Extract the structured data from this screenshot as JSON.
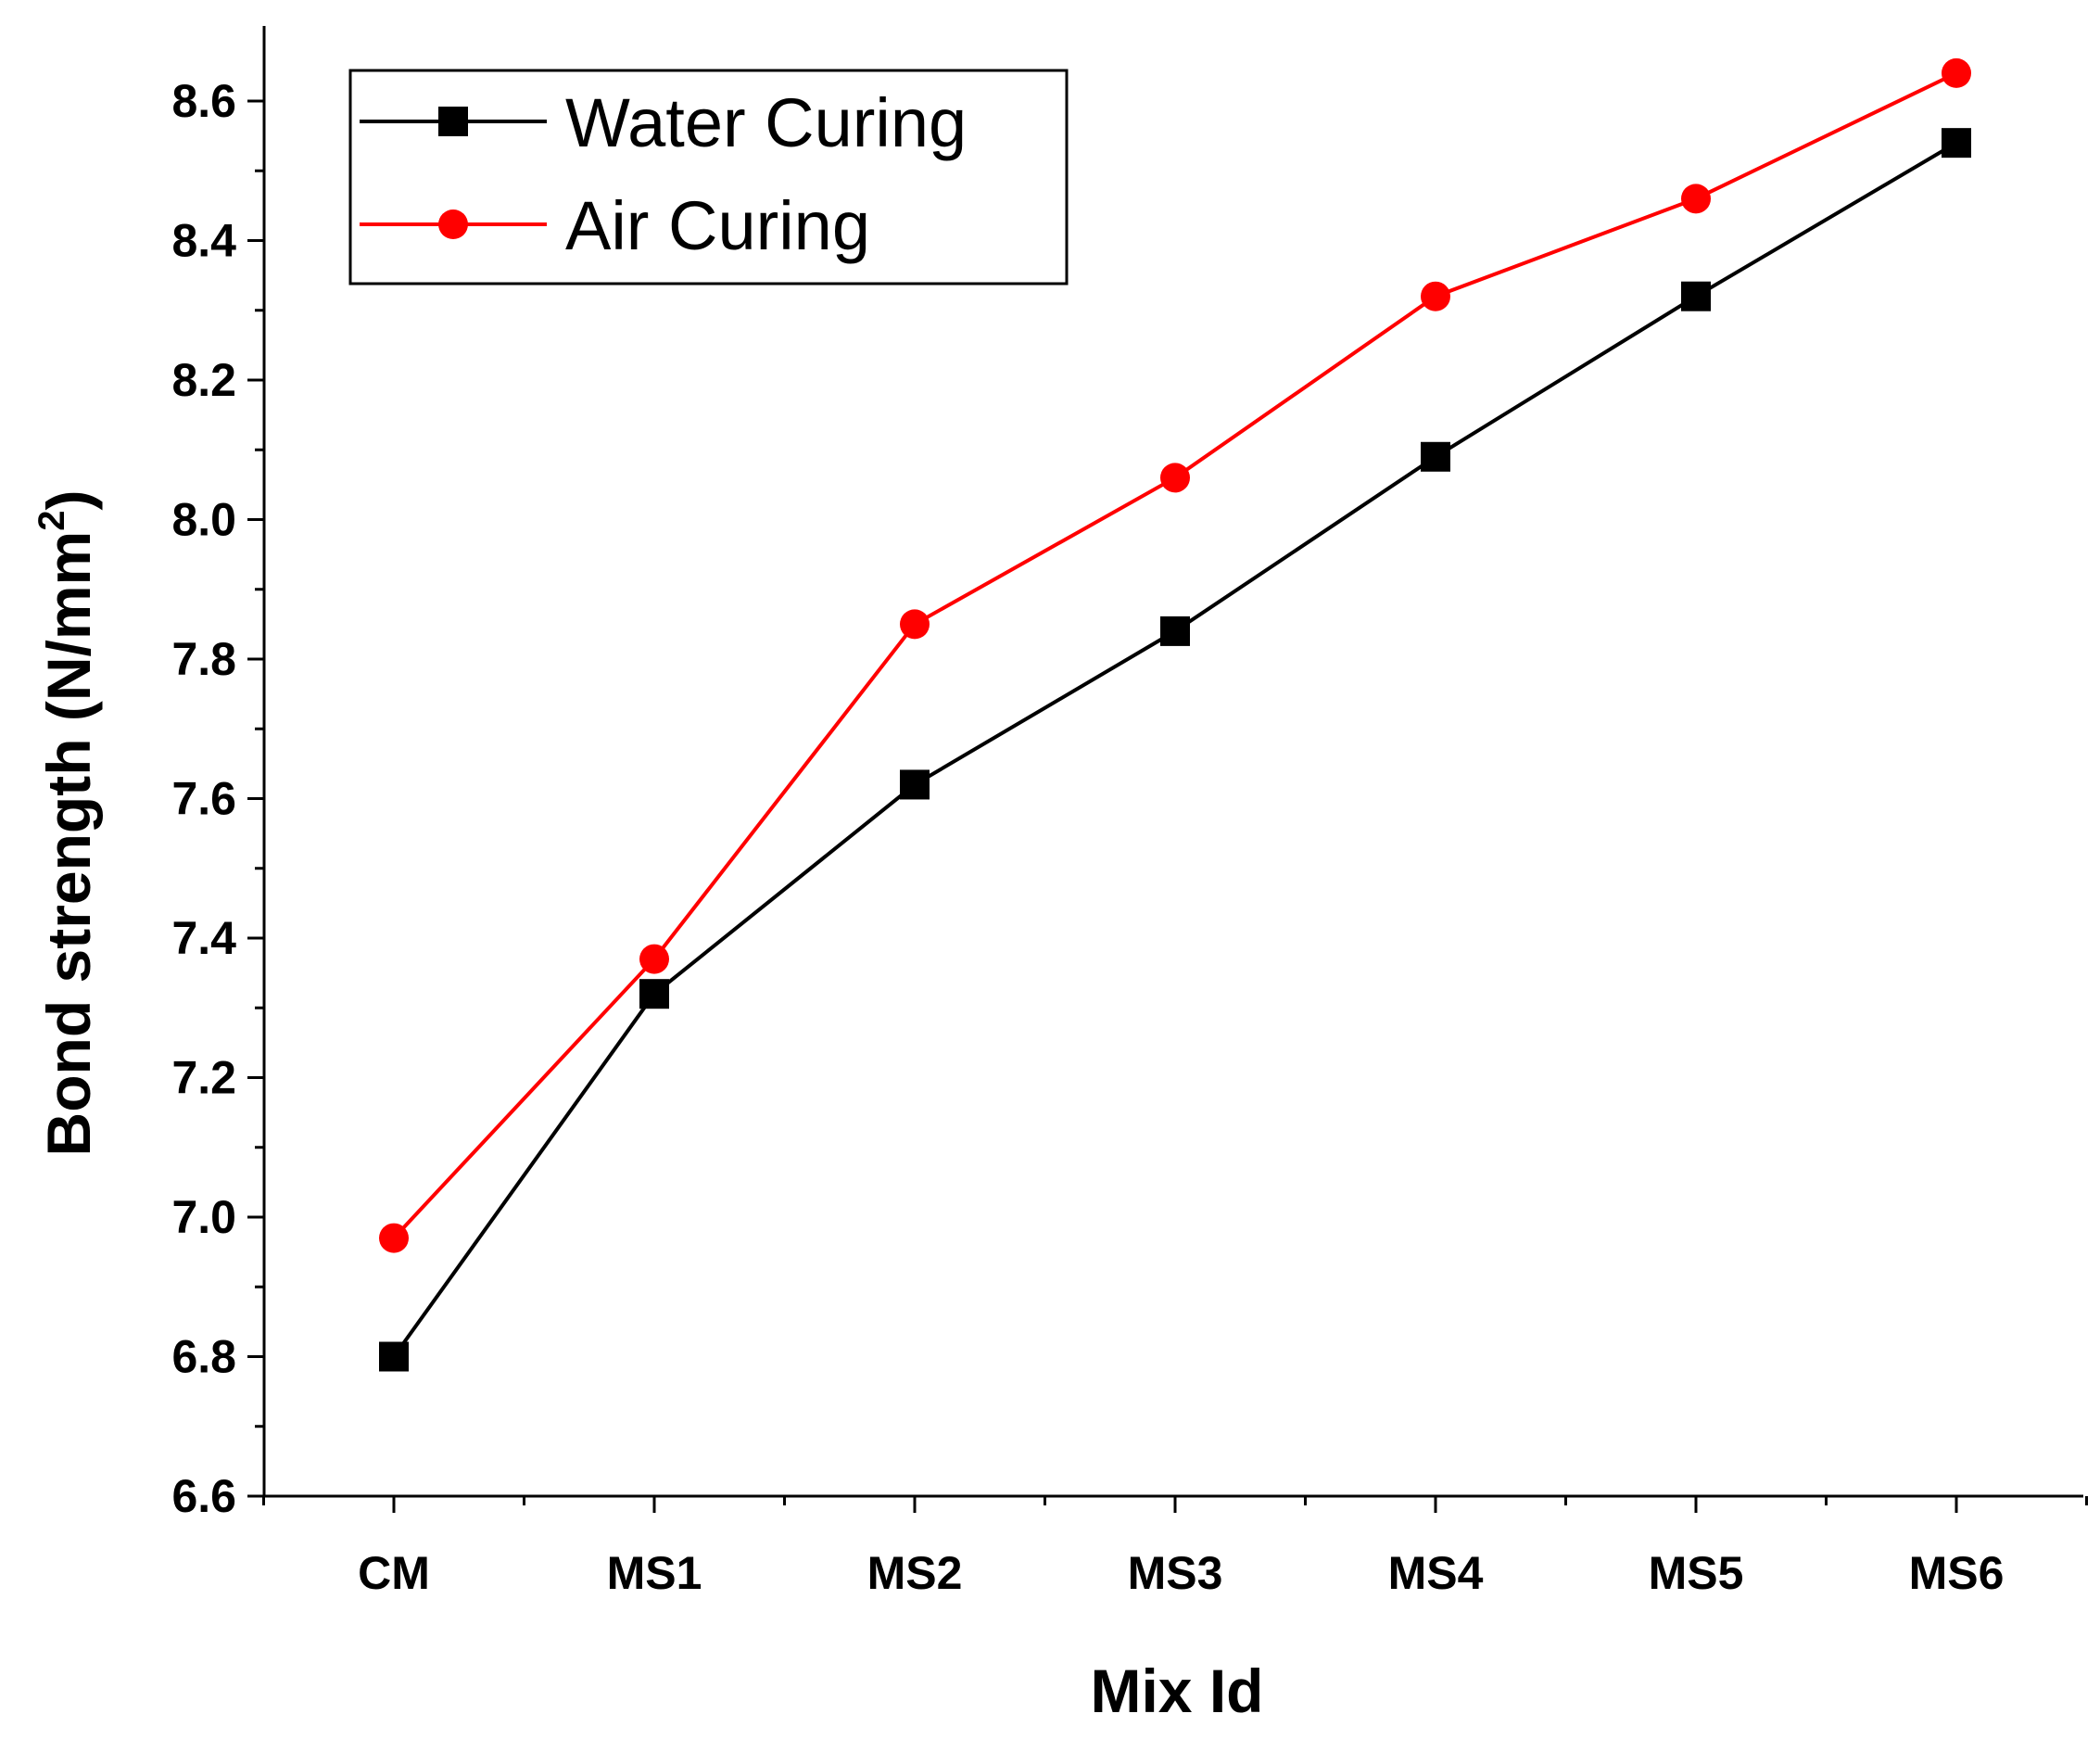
{
  "chart_data": {
    "type": "line",
    "title": "",
    "xlabel": "Mix Id",
    "ylabel": "Bond strength (N/mm",
    "ylabel_superscript": "2",
    "ylabel_close": ")",
    "categories": [
      "CM",
      "MS1",
      "MS2",
      "MS3",
      "MS4",
      "MS5",
      "MS6"
    ],
    "ylim": [
      6.6,
      8.7
    ],
    "yticks": [
      "6.6",
      "6.8",
      "7.0",
      "7.2",
      "7.4",
      "7.6",
      "7.8",
      "8.0",
      "8.2",
      "8.4",
      "8.6"
    ],
    "grid": false,
    "legend_position": "top-left",
    "series": [
      {
        "name": "Water Curing",
        "color": "#000000",
        "marker": "square",
        "values": [
          6.8,
          7.32,
          7.62,
          7.84,
          8.09,
          8.32,
          8.54
        ]
      },
      {
        "name": "Air Curing",
        "color": "#ff0000",
        "marker": "circle",
        "values": [
          6.97,
          7.37,
          7.85,
          8.06,
          8.32,
          8.46,
          8.64
        ]
      }
    ]
  }
}
